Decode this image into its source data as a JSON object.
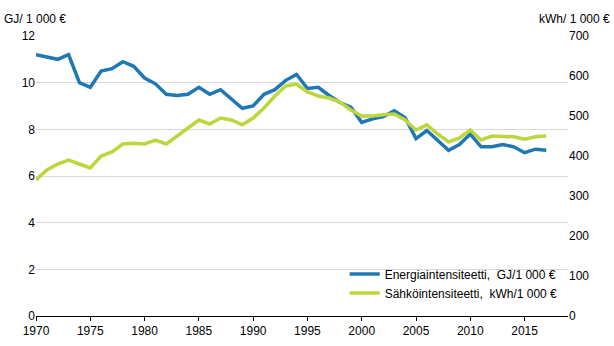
{
  "chart_data": {
    "type": "line",
    "y_label": "GJ/ 1 000 €",
    "y2_label": "kWh/ 1 000 €",
    "x": [
      1970,
      1971,
      1972,
      1973,
      1974,
      1975,
      1976,
      1977,
      1978,
      1979,
      1980,
      1981,
      1982,
      1983,
      1984,
      1985,
      1986,
      1987,
      1988,
      1989,
      1990,
      1991,
      1992,
      1993,
      1994,
      1995,
      1996,
      1997,
      1998,
      1999,
      2000,
      2001,
      2002,
      2003,
      2004,
      2005,
      2006,
      2007,
      2008,
      2009,
      2010,
      2011,
      2012,
      2013,
      2014,
      2015,
      2016,
      2017
    ],
    "series": [
      {
        "name": "Energiaintensiteetti,  GJ/1 000 €",
        "color": "#1f78b4",
        "values": [
          11.2,
          11.1,
          11.0,
          11.2,
          10.0,
          9.8,
          10.5,
          10.6,
          10.9,
          10.7,
          10.2,
          9.95,
          9.5,
          9.45,
          9.5,
          9.8,
          9.5,
          9.7,
          9.3,
          8.9,
          9.0,
          9.5,
          9.7,
          10.1,
          10.35,
          9.75,
          9.8,
          9.45,
          9.15,
          8.95,
          8.3,
          8.45,
          8.55,
          8.8,
          8.5,
          7.6,
          7.95,
          7.5,
          7.1,
          7.35,
          7.8,
          7.25,
          7.25,
          7.35,
          7.25,
          7.0,
          7.15,
          7.1
        ]
      },
      {
        "name": "Sähköintensiteetti,  kWh/1 000 €",
        "color": "#bcd63c",
        "axis": "y2",
        "values": [
          340,
          365,
          380,
          390,
          380,
          370,
          400,
          410,
          430,
          432,
          430,
          440,
          430,
          450,
          470,
          490,
          480,
          495,
          490,
          478,
          495,
          520,
          550,
          575,
          580,
          560,
          550,
          545,
          535,
          515,
          500,
          500,
          503,
          505,
          490,
          465,
          478,
          455,
          435,
          445,
          465,
          440,
          450,
          448,
          448,
          442,
          448,
          450
        ]
      }
    ],
    "xlim": [
      1970,
      2019
    ],
    "xticks": [
      1970,
      1975,
      1980,
      1985,
      1990,
      1995,
      2000,
      2005,
      2010,
      2015
    ],
    "ylim": [
      0,
      12
    ],
    "yticks": [
      0,
      2,
      4,
      6,
      8,
      10,
      12
    ],
    "y2lim": [
      0,
      700
    ],
    "y2ticks": [
      0,
      100,
      200,
      300,
      400,
      500,
      600,
      700
    ],
    "grid": true,
    "legend": "lower right"
  }
}
